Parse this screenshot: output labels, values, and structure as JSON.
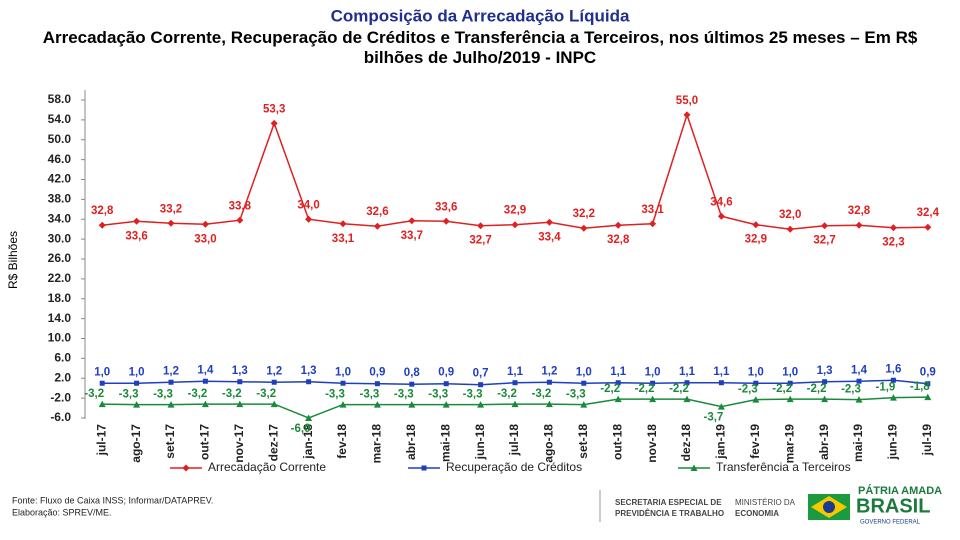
{
  "chart_data": {
    "type": "line",
    "title": "Composição da Arrecadação Líquida",
    "subtitle": "Arrecadação Corrente, Recuperação de Créditos e Transferência a Terceiros, nos últimos 25 meses – Em R$ bilhões de Julho/2019 - INPC",
    "ylabel": "R$ Bilhões",
    "categories": [
      "jul-17",
      "ago-17",
      "set-17",
      "out-17",
      "nov-17",
      "dez-17",
      "jan-18",
      "fev-18",
      "mar-18",
      "abr-18",
      "mai-18",
      "jun-18",
      "jul-18",
      "ago-18",
      "set-18",
      "out-18",
      "nov-18",
      "dez-18",
      "jan-19",
      "fev-19",
      "mar-19",
      "abr-19",
      "mai-19",
      "jun-19",
      "jul-19"
    ],
    "series": [
      {
        "name": "Arrecadação Corrente",
        "color": "#e02020",
        "marker": "diamond",
        "values": [
          32.8,
          33.6,
          33.2,
          33.0,
          33.8,
          53.3,
          34.0,
          33.1,
          32.6,
          33.7,
          33.6,
          32.7,
          32.9,
          33.4,
          32.2,
          32.8,
          33.1,
          55.0,
          34.6,
          32.9,
          32.0,
          32.7,
          32.8,
          32.3,
          32.4
        ],
        "value_labels": [
          "32,8",
          "33,6",
          "33,2",
          "33,0",
          "33,8",
          "53,3",
          "34,0",
          "33,1",
          "32,6",
          "33,7",
          "33,6",
          "32,7",
          "32,9",
          "33,4",
          "32,2",
          "32,8",
          "33,1",
          "55,0",
          "34,6",
          "32,9",
          "32,0",
          "32,7",
          "32,8",
          "32,3",
          "32,4"
        ]
      },
      {
        "name": "Recuperação de Créditos",
        "color": "#1f3fbf",
        "marker": "square",
        "values": [
          1.0,
          1.0,
          1.2,
          1.4,
          1.3,
          1.2,
          1.3,
          1.0,
          0.9,
          0.8,
          0.9,
          0.7,
          1.1,
          1.2,
          1.0,
          1.1,
          1.0,
          1.1,
          1.1,
          1.0,
          1.0,
          1.3,
          1.4,
          1.6,
          0.9
        ],
        "value_labels": [
          "1,0",
          "1,0",
          "1,2",
          "1,4",
          "1,3",
          "1,2",
          "1,3",
          "1,0",
          "0,9",
          "0,8",
          "0,9",
          "0,7",
          "1,1",
          "1,2",
          "1,0",
          "1,1",
          "1,0",
          "1,1",
          "1,1",
          "1,0",
          "1,0",
          "1,3",
          "1,4",
          "1,6",
          "0,9"
        ]
      },
      {
        "name": "Transferência a Terceiros",
        "color": "#1a8a3a",
        "marker": "triangle",
        "values": [
          -3.2,
          -3.3,
          -3.3,
          -3.2,
          -3.2,
          -3.2,
          -6.0,
          -3.3,
          -3.3,
          -3.3,
          -3.3,
          -3.3,
          -3.2,
          -3.2,
          -3.3,
          -2.2,
          -2.2,
          -2.2,
          -3.7,
          -2.3,
          -2.2,
          -2.2,
          -2.3,
          -1.9,
          -1.8
        ],
        "value_labels": [
          "-3,2",
          "-3,3",
          "-3,3",
          "-3,2",
          "-3,2",
          "-3,2",
          "-6,0",
          "-3,3",
          "-3,3",
          "-3,3",
          "-3,3",
          "-3,3",
          "-3,2",
          "-3,2",
          "-3,3",
          "-2,2",
          "-2,2",
          "-2,2",
          "-3,7",
          "-2,3",
          "-2,2",
          "-2,2",
          "-2,3",
          "-1,9",
          "-1,8"
        ]
      }
    ],
    "ylim": [
      -6,
      58
    ],
    "yticks": [
      {
        "value": -6,
        "label": "-6.0"
      },
      {
        "value": -2,
        "label": "-2.0"
      },
      {
        "value": 2,
        "label": "2.0"
      },
      {
        "value": 6,
        "label": "6.0"
      },
      {
        "value": 10,
        "label": "10.0"
      },
      {
        "value": 14,
        "label": "14.0"
      },
      {
        "value": 18,
        "label": "18.0"
      },
      {
        "value": 22,
        "label": "22.0"
      },
      {
        "value": 26,
        "label": "26.0"
      },
      {
        "value": 30,
        "label": "30.0"
      },
      {
        "value": 34,
        "label": "34.0"
      },
      {
        "value": 38,
        "label": "38.0"
      },
      {
        "value": 42,
        "label": "42.0"
      },
      {
        "value": 46,
        "label": "46.0"
      },
      {
        "value": 50,
        "label": "50.0"
      },
      {
        "value": 54,
        "label": "54.0"
      },
      {
        "value": 58,
        "label": "58.0"
      }
    ],
    "grid": false,
    "legend": "bottom"
  },
  "footer": {
    "source": "Fonte: Fluxo de Caixa INSS; Informar/DATAPREV.",
    "credit": "Elaboração: SPREV/ME."
  },
  "logos": {
    "secretaria_1": "SECRETARIA ESPECIAL DE",
    "secretaria_2": "PREVIDÊNCIA E TRABALHO",
    "ministerio_1": "MINISTÉRIO DA",
    "ministerio_2": "ECONOMIA",
    "brasil_1": "PÁTRIA AMADA",
    "brasil_2": "BRASIL",
    "brasil_3": "GOVERNO FEDERAL"
  }
}
